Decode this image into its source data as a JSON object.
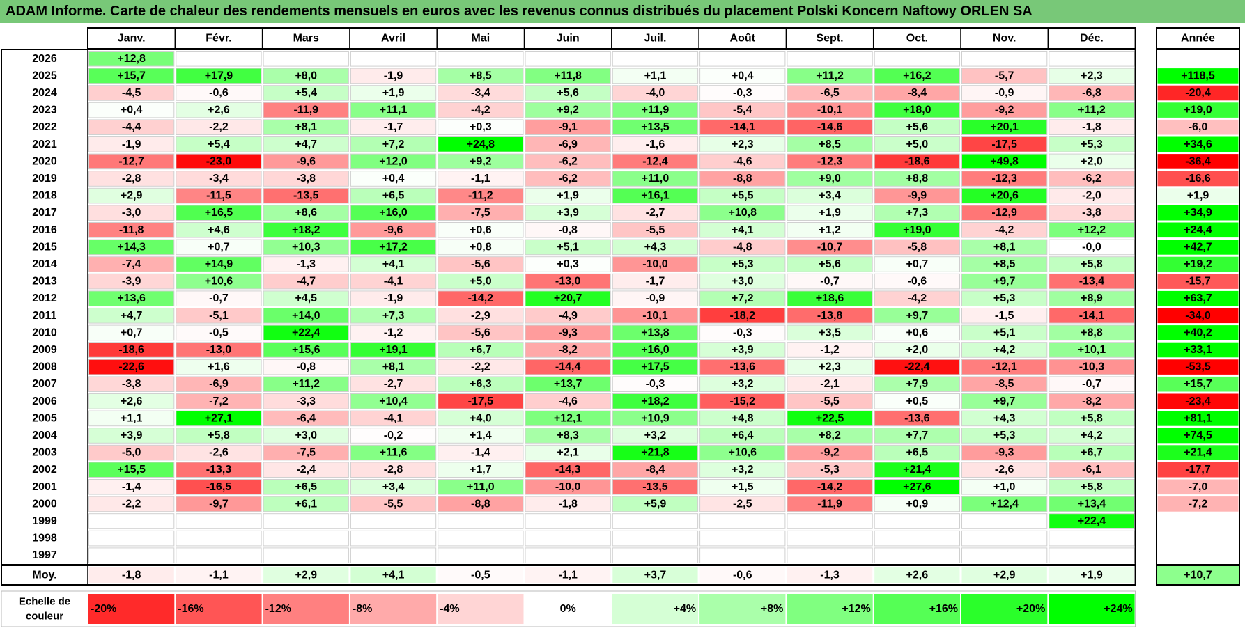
{
  "title": "ADAM Informe. Carte de chaleur des rendements mensuels en euros avec les revenus connus distribués du placement Polski Koncern Naftowy ORLEN SA",
  "chart_data": {
    "type": "heatmap",
    "title": "ADAM Informe. Carte de chaleur des rendements mensuels en euros avec les revenus connus distribués du placement Polski Koncern Naftowy ORLEN SA",
    "months": [
      "Janv.",
      "Févr.",
      "Mars",
      "Avril",
      "Mai",
      "Juin",
      "Juil.",
      "Août",
      "Sept.",
      "Oct.",
      "Nov.",
      "Déc."
    ],
    "year_header": "Année",
    "rows": [
      {
        "year": "2026",
        "values": [
          "+12,8",
          "",
          "",
          "",
          "",
          "",
          "",
          "",
          "",
          "",
          "",
          ""
        ],
        "annual": ""
      },
      {
        "year": "2025",
        "values": [
          "+15,7",
          "+17,9",
          "+8,0",
          "-1,9",
          "+8,5",
          "+11,8",
          "+1,1",
          "+0,4",
          "+11,2",
          "+16,2",
          "-5,7",
          "+2,3"
        ],
        "annual": "+118,5"
      },
      {
        "year": "2024",
        "values": [
          "-4,5",
          "-0,6",
          "+5,4",
          "+1,9",
          "-3,4",
          "+5,6",
          "-4,0",
          "-0,3",
          "-6,5",
          "-8,4",
          "-0,9",
          "-6,8"
        ],
        "annual": "-20,4"
      },
      {
        "year": "2023",
        "values": [
          "+0,4",
          "+2,6",
          "-11,9",
          "+11,1",
          "-4,2",
          "+9,2",
          "+11,9",
          "-5,4",
          "-10,1",
          "+18,0",
          "-9,2",
          "+11,2"
        ],
        "annual": "+19,0"
      },
      {
        "year": "2022",
        "values": [
          "-4,4",
          "-2,2",
          "+8,1",
          "-1,7",
          "+0,3",
          "-9,1",
          "+13,5",
          "-14,1",
          "-14,6",
          "+5,6",
          "+20,1",
          "-1,8"
        ],
        "annual": "-6,0"
      },
      {
        "year": "2021",
        "values": [
          "-1,9",
          "+5,4",
          "+4,7",
          "+7,2",
          "+24,8",
          "-6,9",
          "-1,6",
          "+2,3",
          "+8,5",
          "+5,0",
          "-17,5",
          "+5,3"
        ],
        "annual": "+34,6"
      },
      {
        "year": "2020",
        "values": [
          "-12,7",
          "-23,0",
          "-9,6",
          "+12,0",
          "+9,2",
          "-6,2",
          "-12,4",
          "-4,6",
          "-12,3",
          "-18,6",
          "+49,8",
          "+2,0"
        ],
        "annual": "-36,4"
      },
      {
        "year": "2019",
        "values": [
          "-2,8",
          "-3,4",
          "-3,8",
          "+0,4",
          "-1,1",
          "-6,2",
          "+11,0",
          "-8,8",
          "+9,0",
          "+8,8",
          "-12,3",
          "-6,2"
        ],
        "annual": "-16,6"
      },
      {
        "year": "2018",
        "values": [
          "+2,9",
          "-11,5",
          "-13,5",
          "+6,5",
          "-11,2",
          "+1,9",
          "+16,1",
          "+5,5",
          "+3,4",
          "-9,9",
          "+20,6",
          "-2,0"
        ],
        "annual": "+1,9"
      },
      {
        "year": "2017",
        "values": [
          "-3,0",
          "+16,5",
          "+8,6",
          "+16,0",
          "-7,5",
          "+3,9",
          "-2,7",
          "+10,8",
          "+1,9",
          "+7,3",
          "-12,9",
          "-3,8"
        ],
        "annual": "+34,9"
      },
      {
        "year": "2016",
        "values": [
          "-11,8",
          "+4,6",
          "+18,2",
          "-9,6",
          "+0,6",
          "-0,8",
          "-5,5",
          "+4,1",
          "+1,2",
          "+19,0",
          "-4,2",
          "+12,2"
        ],
        "annual": "+24,4"
      },
      {
        "year": "2015",
        "values": [
          "+14,3",
          "+0,7",
          "+10,3",
          "+17,2",
          "+0,8",
          "+5,1",
          "+4,3",
          "-4,8",
          "-10,7",
          "-5,8",
          "+8,1",
          "-0,0"
        ],
        "annual": "+42,7"
      },
      {
        "year": "2014",
        "values": [
          "-7,4",
          "+14,9",
          "-1,3",
          "+4,1",
          "-5,6",
          "+0,3",
          "-10,0",
          "+5,3",
          "+5,6",
          "+0,7",
          "+8,5",
          "+5,8"
        ],
        "annual": "+19,2"
      },
      {
        "year": "2013",
        "values": [
          "-3,9",
          "+10,6",
          "-4,7",
          "-4,1",
          "+5,0",
          "-13,0",
          "-1,7",
          "+3,0",
          "-0,7",
          "-0,6",
          "+9,7",
          "-13,4"
        ],
        "annual": "-15,7"
      },
      {
        "year": "2012",
        "values": [
          "+13,6",
          "-0,7",
          "+4,5",
          "-1,9",
          "-14,2",
          "+20,7",
          "-0,9",
          "+7,2",
          "+18,6",
          "-4,2",
          "+5,3",
          "+8,9"
        ],
        "annual": "+63,7"
      },
      {
        "year": "2011",
        "values": [
          "+4,7",
          "-5,1",
          "+14,0",
          "+7,3",
          "-2,9",
          "-4,9",
          "-10,1",
          "-18,2",
          "-13,8",
          "+9,7",
          "-1,5",
          "-14,1"
        ],
        "annual": "-34,0"
      },
      {
        "year": "2010",
        "values": [
          "+0,7",
          "-0,5",
          "+22,4",
          "-1,2",
          "-5,6",
          "-9,3",
          "+13,8",
          "-0,3",
          "+3,5",
          "+0,6",
          "+5,1",
          "+8,8"
        ],
        "annual": "+40,2"
      },
      {
        "year": "2009",
        "values": [
          "-18,6",
          "-13,0",
          "+15,6",
          "+19,1",
          "+6,7",
          "-8,2",
          "+16,0",
          "+3,9",
          "-1,2",
          "+2,0",
          "+4,2",
          "+10,1"
        ],
        "annual": "+33,1"
      },
      {
        "year": "2008",
        "values": [
          "-22,6",
          "+1,6",
          "-0,8",
          "+8,1",
          "-2,2",
          "-14,4",
          "+17,5",
          "-13,6",
          "+2,3",
          "-22,4",
          "-12,1",
          "-10,3"
        ],
        "annual": "-53,5"
      },
      {
        "year": "2007",
        "values": [
          "-3,8",
          "-6,9",
          "+11,2",
          "-2,7",
          "+6,3",
          "+13,7",
          "-0,3",
          "+3,2",
          "-2,1",
          "+7,9",
          "-8,5",
          "-0,7"
        ],
        "annual": "+15,7"
      },
      {
        "year": "2006",
        "values": [
          "+2,6",
          "-7,2",
          "-3,3",
          "+10,4",
          "-17,5",
          "-4,6",
          "+18,2",
          "-15,2",
          "-5,5",
          "+0,5",
          "+9,7",
          "-8,2"
        ],
        "annual": "-23,4"
      },
      {
        "year": "2005",
        "values": [
          "+1,1",
          "+27,1",
          "-6,4",
          "-4,1",
          "+4,0",
          "+12,1",
          "+10,9",
          "+4,8",
          "+22,5",
          "-13,6",
          "+4,3",
          "+5,8"
        ],
        "annual": "+81,1"
      },
      {
        "year": "2004",
        "values": [
          "+3,9",
          "+5,8",
          "+3,0",
          "-0,2",
          "+1,4",
          "+8,3",
          "+3,2",
          "+6,4",
          "+8,2",
          "+7,7",
          "+5,3",
          "+4,2"
        ],
        "annual": "+74,5"
      },
      {
        "year": "2003",
        "values": [
          "-5,0",
          "-2,6",
          "-7,5",
          "+11,6",
          "-1,4",
          "+2,1",
          "+21,8",
          "+10,6",
          "-9,2",
          "+6,5",
          "-9,3",
          "+6,7"
        ],
        "annual": "+21,4"
      },
      {
        "year": "2002",
        "values": [
          "+15,5",
          "-13,3",
          "-2,4",
          "-2,8",
          "+1,7",
          "-14,3",
          "-8,4",
          "+3,2",
          "-5,3",
          "+21,4",
          "-2,6",
          "-6,1"
        ],
        "annual": "-17,7"
      },
      {
        "year": "2001",
        "values": [
          "-1,4",
          "-16,5",
          "+6,5",
          "+3,4",
          "+11,0",
          "-10,0",
          "-13,5",
          "+1,5",
          "-14,2",
          "+27,6",
          "+1,0",
          "+5,8"
        ],
        "annual": "-7,0"
      },
      {
        "year": "2000",
        "values": [
          "-2,2",
          "-9,7",
          "+6,1",
          "-5,5",
          "-8,8",
          "-1,8",
          "+5,9",
          "-2,5",
          "-11,9",
          "+0,9",
          "+12,4",
          "+13,4"
        ],
        "annual": "-7,2"
      },
      {
        "year": "1999",
        "values": [
          "",
          "",
          "",
          "",
          "",
          "",
          "",
          "",
          "",
          "",
          "",
          "+22,4"
        ],
        "annual": ""
      },
      {
        "year": "1998",
        "values": [
          "",
          "",
          "",
          "",
          "",
          "",
          "",
          "",
          "",
          "",
          "",
          ""
        ],
        "annual": ""
      },
      {
        "year": "1997",
        "values": [
          "",
          "",
          "",
          "",
          "",
          "",
          "",
          "",
          "",
          "",
          "",
          ""
        ],
        "annual": ""
      }
    ],
    "average": {
      "label": "Moy.",
      "values": [
        "-1,8",
        "-1,1",
        "+2,9",
        "+4,1",
        "-0,5",
        "-1,1",
        "+3,7",
        "-0,6",
        "-1,3",
        "+2,6",
        "+2,9",
        "+1,9"
      ],
      "annual": "+10,7"
    },
    "scale": {
      "label_line1": "Echelle de",
      "label_line2": "couleur",
      "steps": [
        {
          "label": "-20%",
          "value": -20
        },
        {
          "label": "-16%",
          "value": -16
        },
        {
          "label": "-12%",
          "value": -12
        },
        {
          "label": "-8%",
          "value": -8
        },
        {
          "label": "-4%",
          "value": -4
        },
        {
          "label": "0%",
          "value": 0
        },
        {
          "label": "+4%",
          "value": 4
        },
        {
          "label": "+8%",
          "value": 8
        },
        {
          "label": "+12%",
          "value": 12
        },
        {
          "label": "+16%",
          "value": 16
        },
        {
          "label": "+20%",
          "value": 20
        },
        {
          "label": "+24%",
          "value": 24
        }
      ]
    }
  }
}
